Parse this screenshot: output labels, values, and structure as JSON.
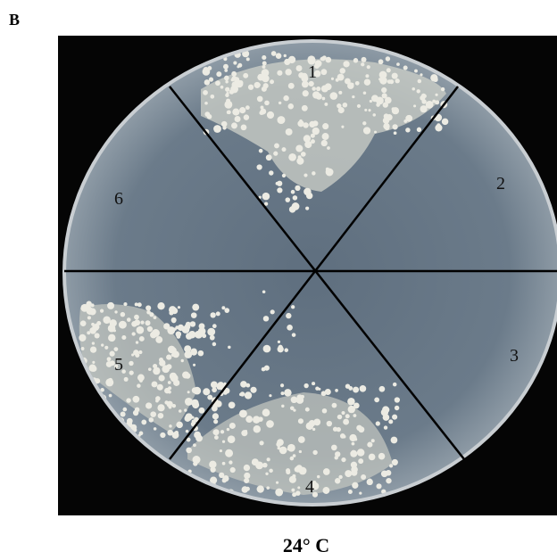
{
  "panel_label": "B",
  "sectors": [
    "1",
    "2",
    "3",
    "4",
    "5",
    "6"
  ],
  "caption": "24° C"
}
